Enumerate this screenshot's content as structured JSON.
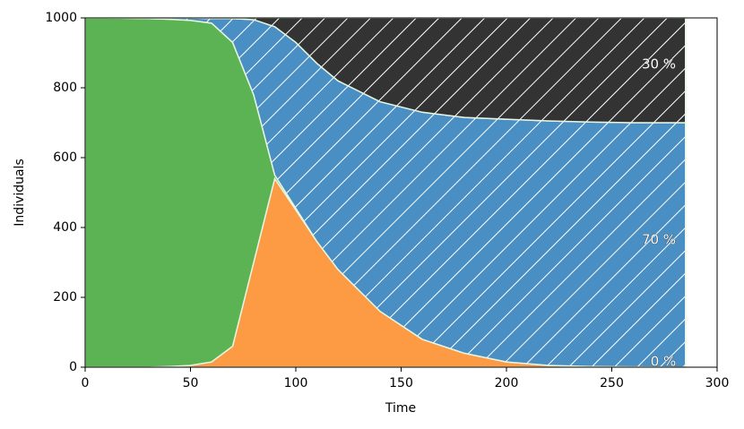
{
  "chart_data": {
    "type": "stacked_area",
    "xlabel": "Time",
    "ylabel": "Individuals",
    "x": [
      0,
      10,
      20,
      30,
      40,
      50,
      60,
      70,
      80,
      90,
      100,
      110,
      120,
      140,
      160,
      180,
      200,
      220,
      240,
      260,
      285
    ],
    "series": [
      {
        "color": "#fd9a44",
        "values": [
          0,
          0,
          0,
          0,
          2,
          5,
          15,
          60,
          300,
          540,
          450,
          360,
          280,
          160,
          80,
          40,
          15,
          5,
          2,
          1,
          0
        ]
      },
      {
        "color": "#5bb354",
        "values": [
          1000,
          1000,
          999,
          998,
          994,
          988,
          970,
          870,
          480,
          10,
          5,
          0,
          0,
          0,
          0,
          0,
          0,
          0,
          0,
          0,
          0
        ]
      },
      {
        "color": "#4a8fc4",
        "values": [
          0,
          0,
          1,
          2,
          4,
          7,
          13,
          68,
          215,
          425,
          475,
          510,
          540,
          600,
          650,
          675,
          695,
          700,
          700,
          699,
          700
        ]
      },
      {
        "color": "#333333",
        "values": [
          0,
          0,
          0,
          0,
          0,
          0,
          2,
          2,
          5,
          25,
          70,
          130,
          180,
          240,
          270,
          285,
          290,
          295,
          298,
          300,
          300
        ]
      }
    ],
    "annotations": [
      "30 %",
      "70 %",
      "0 %"
    ],
    "xlim": [
      0,
      300
    ],
    "xticks": [
      0,
      50,
      100,
      150,
      200,
      250,
      300
    ],
    "ylim": [
      0,
      1000
    ],
    "yticks": [
      0,
      200,
      400,
      600,
      800,
      1000
    ]
  }
}
